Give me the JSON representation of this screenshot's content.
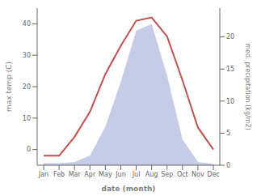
{
  "chart_data": {
    "type": "line",
    "categories": [
      "Jan",
      "Feb",
      "Mar",
      "Apr",
      "May",
      "Jun",
      "Jul",
      "Aug",
      "Sep",
      "Oct",
      "Nov",
      "Dec"
    ],
    "series": [
      {
        "type": "area",
        "color": "#c5cce8",
        "axis": "y2",
        "values": [
          0.3,
          0.3,
          0.5,
          1.5,
          6,
          13,
          21,
          22,
          14,
          4,
          0.5,
          0.2
        ]
      },
      {
        "type": "line",
        "color": "#c0504d",
        "values": [
          -2,
          -2,
          4,
          12,
          24,
          33,
          41,
          42,
          36,
          22,
          7,
          0
        ]
      }
    ],
    "xlabel": "date (month)",
    "ylabel": "max temp (C)",
    "y2label": "med. precipitation (kg/m2)",
    "ylim": [
      -5,
      45
    ],
    "yticks": [
      0,
      10,
      20,
      30,
      40
    ],
    "y2lim": [
      0,
      24.5
    ],
    "y2ticks": [
      0,
      5,
      10,
      15,
      20
    ],
    "grid": false
  }
}
